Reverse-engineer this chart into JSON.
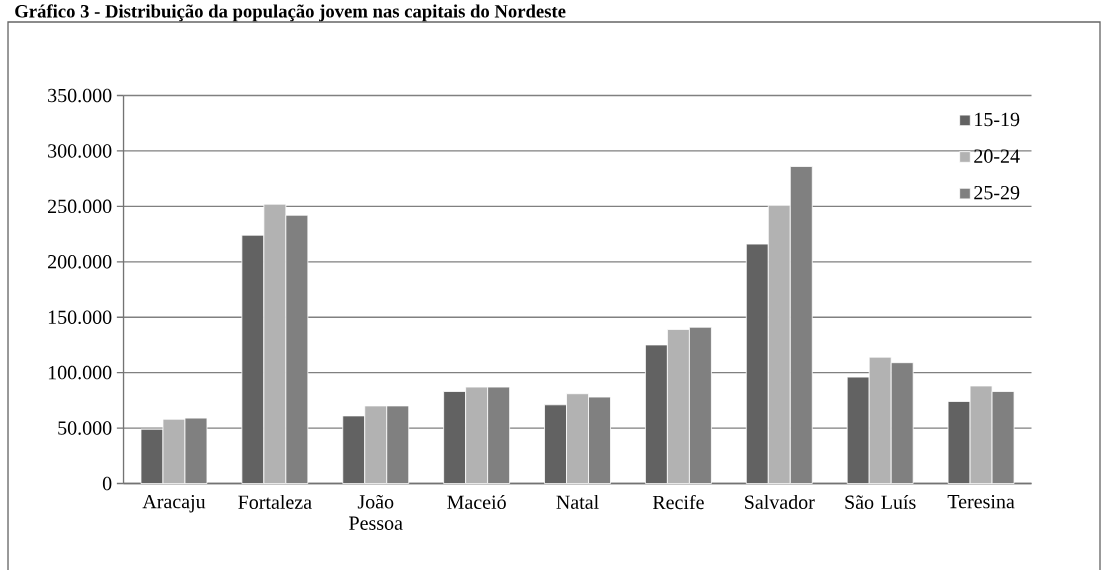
{
  "chart_data": {
    "type": "bar",
    "title": "Gráfico 3 - Distribuição da população jovem nas capitais do Nordeste",
    "categories": [
      "Aracaju",
      "Fortaleza",
      "João Pessoa",
      "Maceió",
      "Natal",
      "Recife",
      "Salvador",
      "São Luís",
      "Teresina"
    ],
    "series": [
      {
        "name": "15-19",
        "color": "#626262",
        "values": [
          49000,
          224000,
          61000,
          83000,
          71000,
          125000,
          216000,
          96000,
          74000
        ]
      },
      {
        "name": "20-24",
        "color": "#b2b2b2",
        "values": [
          58000,
          252000,
          70000,
          87000,
          81000,
          139000,
          251000,
          114000,
          88000
        ]
      },
      {
        "name": "25-29",
        "color": "#808080",
        "values": [
          59000,
          242000,
          70000,
          87000,
          78000,
          141000,
          286000,
          109000,
          83000
        ]
      }
    ],
    "ylim": [
      0,
      350000
    ],
    "yticks": [
      0,
      {
        "value": 50000,
        "label": "50.000"
      },
      {
        "value": 100000,
        "label": "100.000"
      },
      {
        "value": 150000,
        "label": "150.000"
      },
      {
        "value": 200000,
        "label": "200.000"
      },
      {
        "value": 250000,
        "label": "250.000"
      },
      {
        "value": 300000,
        "label": "300.000"
      },
      {
        "value": 350000,
        "label": "350.000"
      }
    ],
    "grid": "y",
    "legend": "top right"
  }
}
